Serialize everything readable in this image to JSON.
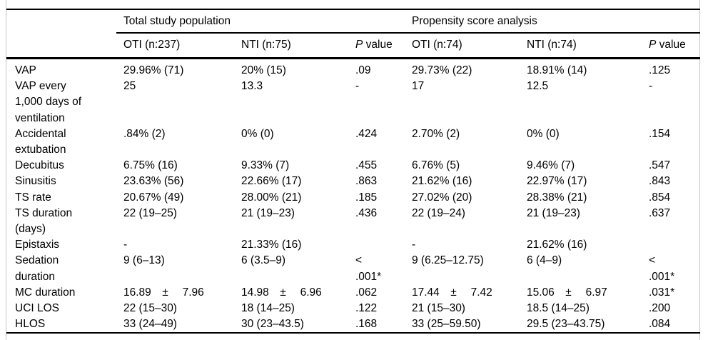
{
  "table": {
    "group_headers": {
      "total": "Total study population",
      "psa": "Propensity score analysis"
    },
    "column_headers": {
      "total_oti": "OTI (n:237)",
      "total_nti": "NTI (n:75)",
      "p1_italic": "P",
      "p1_rest": " value",
      "psa_oti": "OTI (n:74)",
      "psa_nti": "NTI (n:74)",
      "p2_italic": "P",
      "p2_rest": " value"
    },
    "rows": [
      {
        "label": "VAP",
        "total_oti": "29.96% (71)",
        "total_nti": "20% (15)",
        "p1": ".09",
        "psa_oti": "29.73% (22)",
        "psa_nti": "18.91% (14)",
        "p2": ".125"
      },
      {
        "label": "VAP every\n1,000 days of\nventilation",
        "total_oti": "25",
        "total_nti": "13.3",
        "p1": "-",
        "psa_oti": "17",
        "psa_nti": "12.5",
        "p2": "-"
      },
      {
        "label": "Accidental\nextubation",
        "total_oti": ".84% (2)",
        "total_nti": "0% (0)",
        "p1": ".424",
        "psa_oti": "2.70% (2)",
        "psa_nti": "0% (0)",
        "p2": ".154"
      },
      {
        "label": "Decubitus",
        "total_oti": "6.75% (16)",
        "total_nti": "9.33% (7)",
        "p1": ".455",
        "psa_oti": "6.76% (5)",
        "psa_nti": "9.46% (7)",
        "p2": ".547"
      },
      {
        "label": "Sinusitis",
        "total_oti": "23.63% (56)",
        "total_nti": "22.66% (17)",
        "p1": ".863",
        "psa_oti": "21.62% (16)",
        "psa_nti": "22.97% (17)",
        "p2": ".843"
      },
      {
        "label": "TS rate",
        "total_oti": "20.67% (49)",
        "total_nti": "28.00% (21)",
        "p1": ".185",
        "psa_oti": "27.02% (20)",
        "psa_nti": "28.38% (21)",
        "p2": ".854"
      },
      {
        "label": "TS duration\n(days)",
        "total_oti": "22 (19–25)",
        "total_nti": "21 (19–23)",
        "p1": ".436",
        "psa_oti": "22 (19–24)",
        "psa_nti": "21 (19–23)",
        "p2": ".637"
      },
      {
        "label": "Epistaxis",
        "total_oti": "-",
        "total_nti": "21.33% (16)",
        "p1": "",
        "psa_oti": "-",
        "psa_nti": "21.62% (16)",
        "p2": ""
      },
      {
        "label": "Sedation\nduration",
        "total_oti": "9 (6–13)",
        "total_nti": "6 (3.5–9)",
        "p1": "<\n.001*",
        "psa_oti": "9 (6.25–12.75)",
        "psa_nti": "6 (4–9)",
        "p2": "<\n.001*"
      },
      {
        "label": "MC duration",
        "total_oti": "16.89 ±  7.96",
        "total_nti": "14.98 ±  6.96",
        "p1": ".062",
        "psa_oti": "17.44 ±  7.42",
        "psa_nti": "15.06 ±  6.97",
        "p2": ".031*"
      },
      {
        "label": "UCI LOS",
        "total_oti": "22 (15–30)",
        "total_nti": "18 (14–25)",
        "p1": ".122",
        "psa_oti": "21 (15–30)",
        "psa_nti": "18.5 (14–25)",
        "p2": ".200"
      },
      {
        "label": "HLOS",
        "total_oti": "33 (24–49)",
        "total_nti": "30 (23–43.5)",
        "p1": ".168",
        "psa_oti": "33 (25–59.50)",
        "psa_nti": "29.5 (23–43.75)",
        "p2": ".084"
      }
    ]
  }
}
